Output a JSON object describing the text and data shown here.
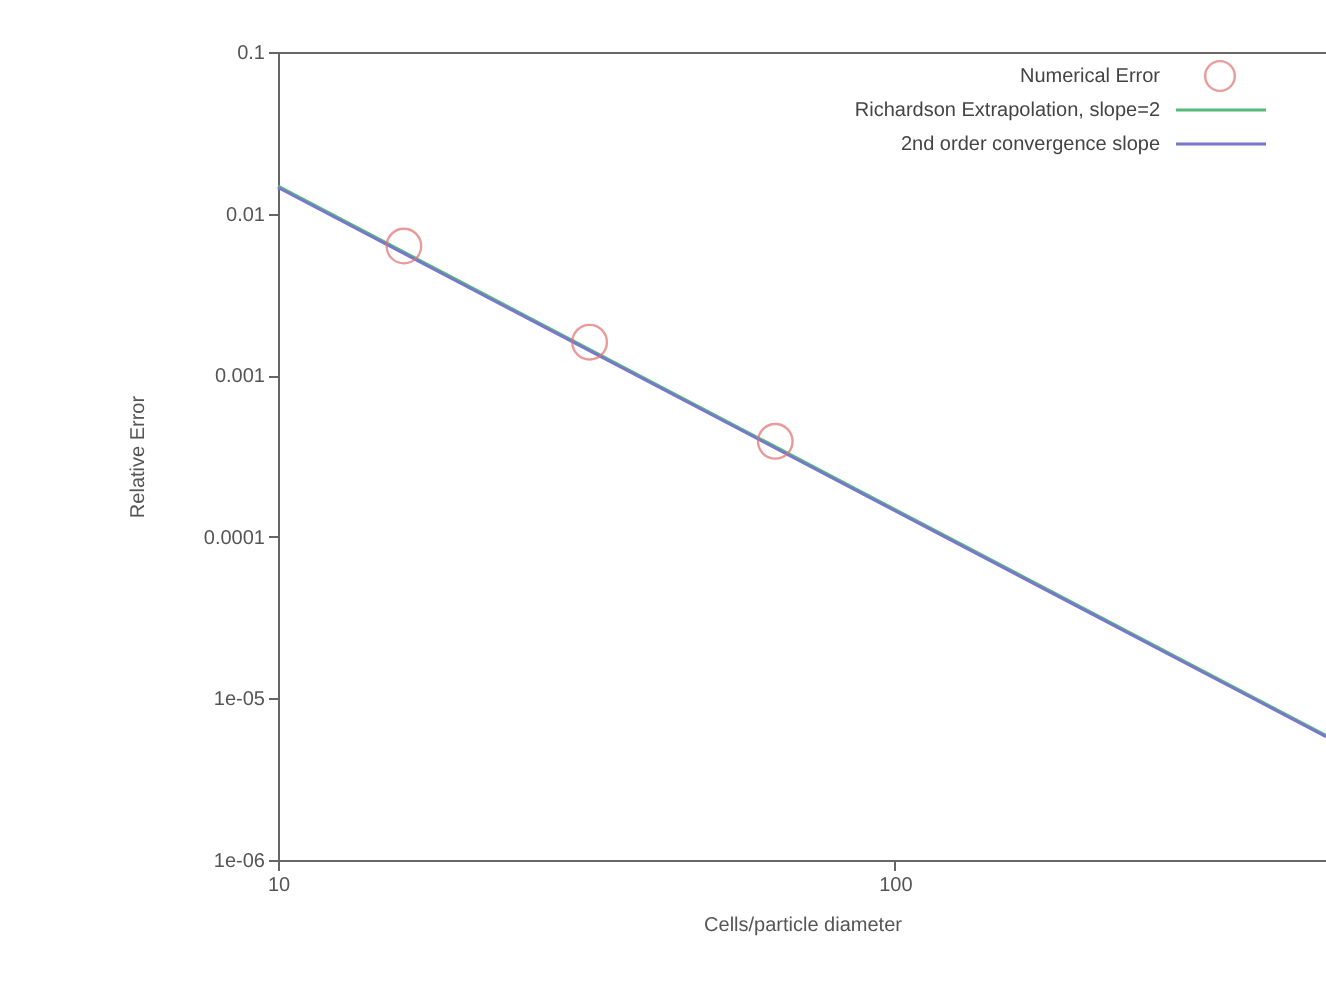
{
  "chart_data": {
    "type": "line",
    "xlabel": "Cells/particle diameter",
    "ylabel": "Relative Error",
    "log": "xy",
    "xlim": [
      10,
      500
    ],
    "ylim": [
      1e-06,
      0.1
    ],
    "xticks": [
      10,
      100
    ],
    "yticks": [
      0.1,
      0.01,
      0.001,
      0.0001,
      {
        "value": 1e-05,
        "label": "1e-05"
      },
      {
        "value": 1e-06,
        "label": "1e-06"
      }
    ],
    "grid": false,
    "legend": "top right",
    "series": [
      {
        "name": "Numerical Error",
        "type": "scatter",
        "marker": "circle",
        "color": "#e07070",
        "x": [
          16,
          32,
          64
        ],
        "values": [
          0.0063,
          0.0016,
          0.00039
        ]
      },
      {
        "name": "Richardson Extrapolation, slope=2",
        "color": "#55bb77",
        "x": [
          10,
          500
        ],
        "values": [
          0.0148,
          5.9e-06
        ]
      },
      {
        "name": "2nd order convergence slope",
        "color": "#7777cc",
        "x": [
          10,
          500
        ],
        "values": [
          0.0145,
          5.8e-06
        ]
      }
    ]
  }
}
